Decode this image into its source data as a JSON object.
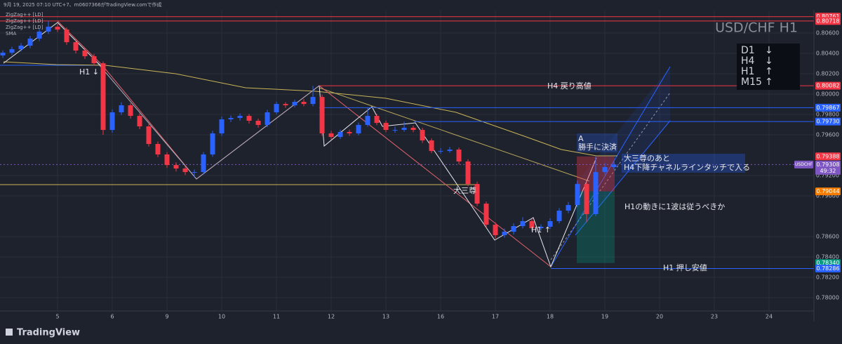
{
  "header": {
    "caption": "9月 19, 2025 07:10 UTC+7、m0607366がTradingView.comで作成"
  },
  "indicators": [
    "ZigZag++ [LD]",
    "ZigZag++ [LD]",
    "ZigZag++ [LD]",
    "SMA"
  ],
  "watermark": "USD/CHF H1",
  "trend_table": [
    {
      "tf": "D1",
      "dir": "↓"
    },
    {
      "tf": "H4",
      "dir": "↓"
    },
    {
      "tf": "H1",
      "dir": "↑"
    },
    {
      "tf": "M15",
      "dir": "↑"
    }
  ],
  "annotations": [
    "H1 ↓",
    "H4 戻り高値",
    "A",
    "勝手に決済",
    "大三尊のあと",
    "H4下降チャネルラインタッチで入る",
    "大三尊",
    "H1 ↑",
    "H1の動きに1波は従うべきか",
    "H1 押し安値"
  ],
  "footer": {
    "brand": "TradingView"
  },
  "chart_data": {
    "type": "candlestick",
    "up_color": "#2962ff",
    "down_color": "#f23645",
    "categories": [
      null,
      null,
      null,
      null,
      null,
      null,
      "5",
      null,
      null,
      null,
      null,
      null,
      "6",
      null,
      null,
      null,
      null,
      null,
      "9",
      null,
      null,
      null,
      null,
      null,
      "10",
      null,
      null,
      null,
      null,
      null,
      "11",
      null,
      null,
      null,
      null,
      null,
      "12",
      null,
      null,
      null,
      null,
      null,
      "13",
      null,
      null,
      null,
      null,
      null,
      "16",
      null,
      null,
      null,
      null,
      null,
      "17",
      null,
      null,
      null,
      null,
      null,
      "18",
      null,
      null,
      null,
      null,
      null,
      "19",
      null,
      null,
      null,
      null,
      null,
      "20",
      null,
      null,
      null,
      null,
      null,
      "23",
      null,
      null,
      null,
      null,
      null,
      "24",
      null,
      null,
      null,
      null
    ],
    "open": [
      0.8038,
      0.80407,
      0.80441,
      0.80476,
      0.80545,
      0.80614,
      0.80662,
      0.80634,
      0.8051,
      0.80428,
      0.80372,
      0.80303,
      0.79648,
      0.79821,
      0.7989,
      0.79786,
      0.79683,
      0.7951,
      0.79407,
      0.79303,
      0.79269,
      0.79234,
      0.79234,
      0.79407,
      0.79614,
      0.79752,
      0.79766,
      0.79786,
      0.79738,
      0.79697,
      0.79821,
      0.79903,
      0.7989,
      0.79924,
      0.79903,
      0.79972,
      0.79614,
      0.79579,
      0.79628,
      0.79614,
      0.79697,
      0.79786,
      0.79717,
      0.79648,
      0.79648,
      0.79669,
      0.79648,
      0.79545,
      0.79441,
      0.79441,
      0.79455,
      0.79338,
      0.79117,
      0.78924,
      0.78717,
      0.78614,
      0.78648,
      0.78703,
      0.78752,
      0.78683,
      0.78697,
      0.78752,
      0.78855,
      0.7891,
      0.79117,
      0.78821,
      0.79234,
      0.79283,
      null,
      null,
      null,
      null,
      null,
      null,
      null,
      null,
      null,
      null,
      null,
      null,
      null,
      null,
      null,
      null,
      null,
      null,
      null,
      null,
      null
    ],
    "high": [
      0.8043,
      0.80465,
      0.805,
      0.8057,
      0.8064,
      0.80718,
      0.8069,
      0.80655,
      0.80535,
      0.8045,
      0.80395,
      0.8032,
      0.7985,
      0.7992,
      0.7991,
      0.7981,
      0.79705,
      0.79535,
      0.7943,
      0.7933,
      0.79295,
      0.7926,
      0.7943,
      0.7964,
      0.7978,
      0.7979,
      0.7981,
      0.79805,
      0.7976,
      0.79845,
      0.79925,
      0.7992,
      0.79945,
      0.7995,
      0.80082,
      0.79995,
      0.7964,
      0.7965,
      0.7965,
      0.7972,
      0.79867,
      0.79805,
      0.7974,
      0.7968,
      0.7973,
      0.7969,
      0.7967,
      0.79565,
      0.7947,
      0.7948,
      0.79475,
      0.7936,
      0.7914,
      0.78945,
      0.7874,
      0.7868,
      0.7873,
      0.7879,
      0.78775,
      0.7872,
      0.7878,
      0.7888,
      0.7894,
      0.7915,
      0.7914,
      0.79388,
      0.7932,
      0.79335,
      null,
      null,
      null,
      null,
      null,
      null,
      null,
      null,
      null,
      null,
      null,
      null,
      null,
      null,
      null,
      null,
      null,
      null,
      null,
      null,
      null
    ],
    "low": [
      0.80355,
      0.80385,
      0.8042,
      0.8045,
      0.8052,
      0.8059,
      0.8061,
      0.80485,
      0.804,
      0.80345,
      0.8028,
      0.796,
      0.7962,
      0.79795,
      0.7976,
      0.79655,
      0.79485,
      0.7938,
      0.79275,
      0.7924,
      0.79205,
      0.7918,
      0.7921,
      0.79385,
      0.7959,
      0.79725,
      0.7974,
      0.7971,
      0.7967,
      0.79675,
      0.798,
      0.79865,
      0.7987,
      0.7988,
      0.7988,
      0.7959,
      0.79555,
      0.7956,
      0.7959,
      0.79595,
      0.7968,
      0.79695,
      0.79625,
      0.7962,
      0.7963,
      0.79625,
      0.7952,
      0.7942,
      0.79415,
      0.79425,
      0.7931,
      0.79095,
      0.789,
      0.7869,
      0.7858,
      0.7859,
      0.7862,
      0.7868,
      0.7866,
      0.7866,
      0.78675,
      0.7873,
      0.7883,
      0.7889,
      0.7874,
      0.788,
      0.7921,
      0.7926,
      null,
      null,
      null,
      null,
      null,
      null,
      null,
      null,
      null,
      null,
      null,
      null,
      null,
      null,
      null,
      null,
      null,
      null,
      null,
      null,
      null
    ],
    "close": [
      0.80407,
      0.80441,
      0.80476,
      0.80545,
      0.80614,
      0.80662,
      0.80634,
      0.8051,
      0.80428,
      0.80372,
      0.80303,
      0.79648,
      0.79821,
      0.7989,
      0.79786,
      0.79683,
      0.7951,
      0.79407,
      0.79303,
      0.79269,
      0.79234,
      0.79234,
      0.79407,
      0.79614,
      0.79752,
      0.79766,
      0.79786,
      0.79738,
      0.79697,
      0.79821,
      0.79903,
      0.7989,
      0.79924,
      0.79903,
      0.79972,
      0.79614,
      0.79579,
      0.79628,
      0.79614,
      0.79697,
      0.79786,
      0.79717,
      0.79648,
      0.79648,
      0.79669,
      0.79648,
      0.79545,
      0.79441,
      0.79441,
      0.79455,
      0.79338,
      0.79117,
      0.78924,
      0.78717,
      0.78614,
      0.78648,
      0.78703,
      0.78752,
      0.78683,
      0.78697,
      0.78752,
      0.78855,
      0.7891,
      0.79117,
      0.78821,
      0.79234,
      0.79283,
      0.79308,
      null,
      null,
      null,
      null,
      null,
      null,
      null,
      null,
      null,
      null,
      null,
      null,
      null,
      null,
      null,
      null,
      null,
      null,
      null,
      null,
      null
    ],
    "ylim": [
      0.77869,
      0.80821
    ],
    "yticks": [
      {
        "value": 0.78,
        "label": "0.78000"
      },
      {
        "value": 0.782,
        "label": "0.78200"
      },
      {
        "value": 0.784,
        "label": "0.78400"
      },
      {
        "value": 0.786,
        "label": "0.78600"
      },
      {
        "value": 0.79,
        "label": "0.79000"
      },
      {
        "value": 0.792,
        "label": "0.79200"
      },
      {
        "value": 0.796,
        "label": "0.79600"
      },
      {
        "value": 0.798,
        "label": "0.79800"
      },
      {
        "value": 0.8,
        "label": "0.80000"
      },
      {
        "value": 0.802,
        "label": "0.80200"
      },
      {
        "value": 0.804,
        "label": "0.80400"
      },
      {
        "value": 0.806,
        "label": "0.80600"
      }
    ],
    "grid": true,
    "price_levels": [
      {
        "value": 0.80761,
        "label": "0.80761",
        "color": "#f23645"
      },
      {
        "value": 0.80718,
        "label": "0.80718",
        "color": "#f23645"
      },
      {
        "value": 0.80082,
        "label": "0.80082",
        "color": "#f23645"
      },
      {
        "value": 0.79867,
        "label": "0.79867",
        "color": "#2962ff"
      },
      {
        "value": 0.7973,
        "label": "0.79730",
        "color": "#2962ff"
      },
      {
        "value": 0.79388,
        "label": "0.79388",
        "color": "#f23645"
      },
      {
        "value": 0.79044,
        "label": "0.79044",
        "color": "#f57c00"
      },
      {
        "value": 0.7834,
        "label": "0.78340",
        "color": "#089981"
      },
      {
        "value": 0.78286,
        "label": "0.78286",
        "color": "#2962ff"
      }
    ],
    "last_price": {
      "symbol": "USDCHF",
      "value": 0.79308,
      "label": "0.79308",
      "countdown": "49:32",
      "color": "#7e57c2"
    }
  }
}
